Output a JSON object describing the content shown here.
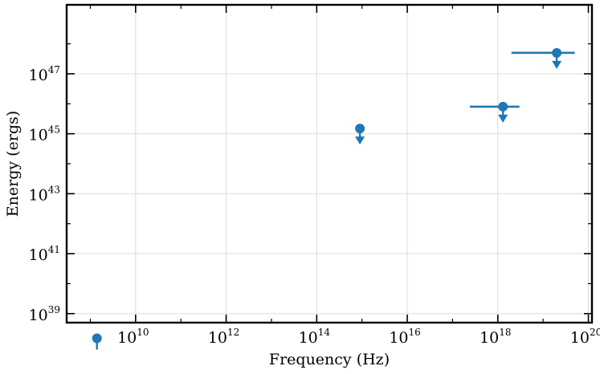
{
  "chart_data": {
    "type": "scatter",
    "xlabel": "Frequency (Hz)",
    "ylabel": "Energy (ergs)",
    "x_scale": "log",
    "y_scale": "log",
    "xlim": [
      300000000,
      120000000000000000000
    ],
    "ylim": [
      500000000000000000000000000000000000000,
      20000000000000000000000000000000000000000000000000
    ],
    "x_ticks": [
      {
        "value": 10000000000,
        "base": "10",
        "exp": "10"
      },
      {
        "value": 1000000000000,
        "base": "10",
        "exp": "12"
      },
      {
        "value": 100000000000000,
        "base": "10",
        "exp": "14"
      },
      {
        "value": 10000000000000000,
        "base": "10",
        "exp": "16"
      },
      {
        "value": 1000000000000000000,
        "base": "10",
        "exp": "18"
      },
      {
        "value": 100000000000000000000,
        "base": "10",
        "exp": "20"
      }
    ],
    "y_ticks": [
      {
        "value": 1e+39,
        "base": "10",
        "exp": "39"
      },
      {
        "value": 1e+41,
        "base": "10",
        "exp": "41"
      },
      {
        "value": 1e+43,
        "base": "10",
        "exp": "43"
      },
      {
        "value": 1e+45,
        "base": "10",
        "exp": "45"
      },
      {
        "value": 1e+47,
        "base": "10",
        "exp": "47"
      }
    ],
    "grid": true,
    "marker_color": "#1f77b4",
    "points": [
      {
        "x": 1400000000,
        "y": 1.5e+38,
        "upper_limit": true,
        "x_err": null
      },
      {
        "x": 900000000000000,
        "y": 1.5e+45,
        "upper_limit": true,
        "x_err": null
      },
      {
        "x": 1300000000000000000,
        "y": 8e+45,
        "upper_limit": true,
        "x_err": [
          240000000000000000,
          3000000000000000000
        ]
      },
      {
        "x": 20000000000000000000,
        "y": 5e+47,
        "upper_limit": true,
        "x_err": [
          2000000000000000000,
          50000000000000000000
        ]
      }
    ]
  }
}
